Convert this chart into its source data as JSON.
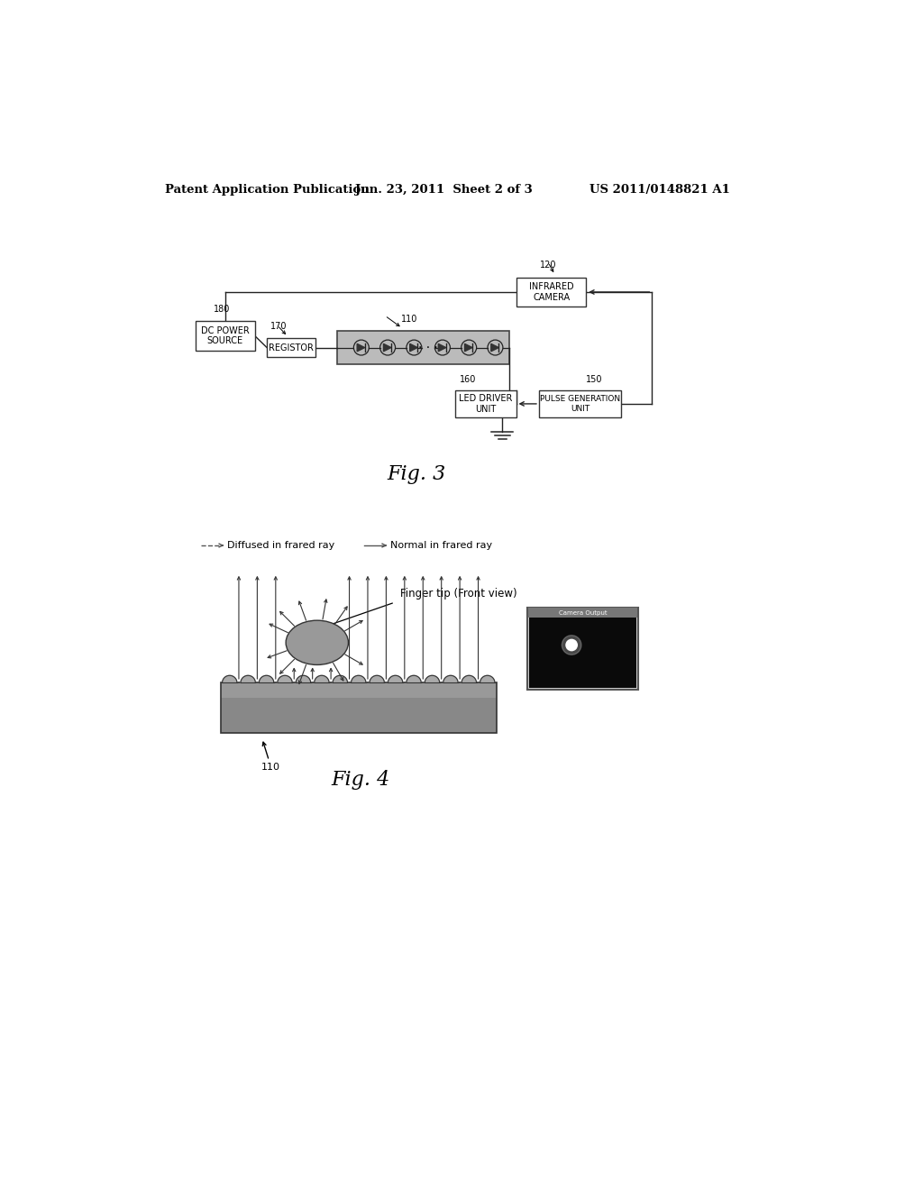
{
  "bg_color": "#ffffff",
  "header_left": "Patent Application Publication",
  "header_center": "Jun. 23, 2011  Sheet 2 of 3",
  "header_right": "US 2011/0148821 A1",
  "fig3_label": "Fig. 3",
  "fig4_label": "Fig. 4",
  "fig4_legend_diffused": "Diffused in frared ray",
  "fig4_legend_normal": "Normal in frared ray",
  "fig4_fingertip": "Finger tip (Front view)",
  "fig4_strip_ref": "110",
  "cam_ref": "120",
  "dcps_ref": "180",
  "reg_ref": "170",
  "strip_ref": "110",
  "led_drv_ref": "160",
  "pulse_ref": "150"
}
